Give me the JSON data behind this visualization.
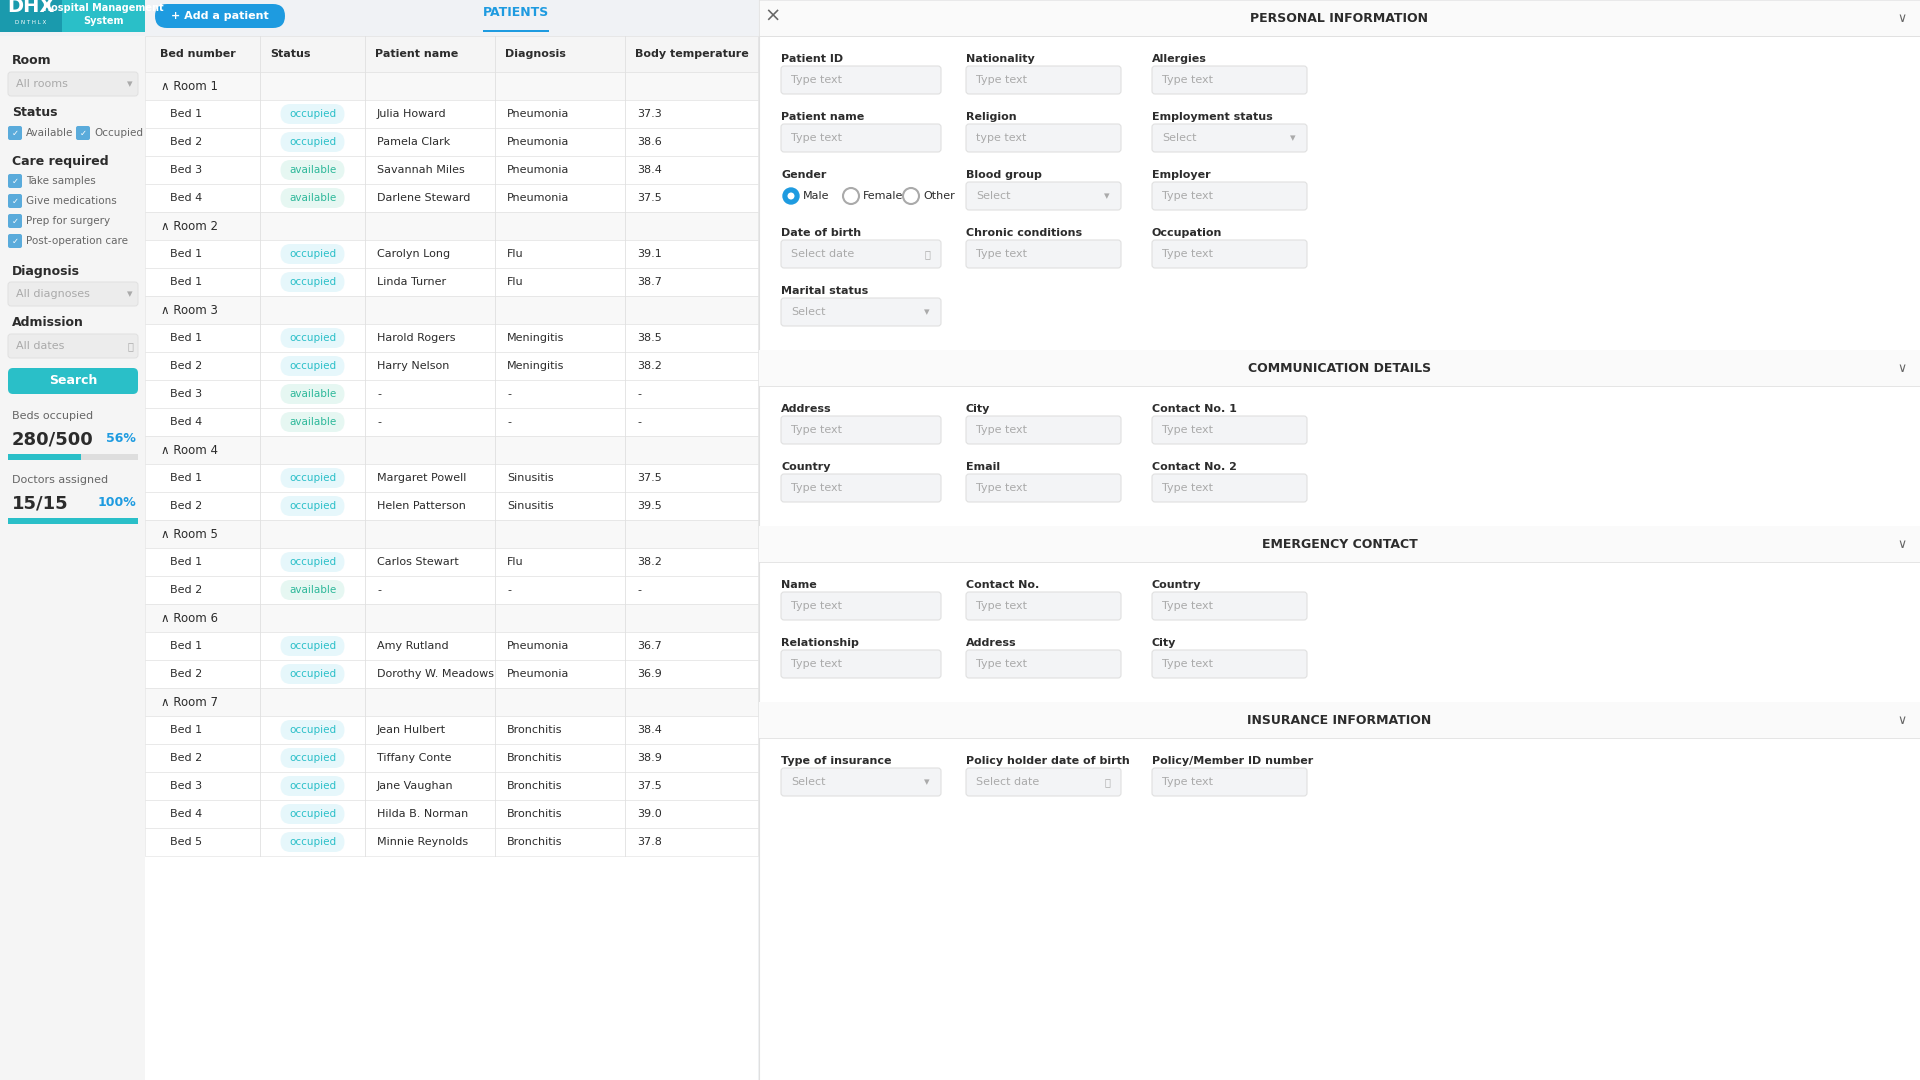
{
  "teal_color": "#2abfc8",
  "teal_dark": "#1a9aad",
  "blue_btn": "#1e9be0",
  "occupied_text": "#2abfc8",
  "available_text": "#2db89a",
  "bg_color": "#f0f2f5",
  "white": "#ffffff",
  "light_gray": "#f7f7f7",
  "sidebar_bg": "#f5f5f5",
  "border_gray": "#e0e0e0",
  "text_dark": "#2c2c2c",
  "text_medium": "#666666",
  "text_light": "#aaaaaa",
  "checkbox_blue": "#5aabdb",
  "section_bg": "#fafafa",
  "rooms": [
    {
      "name": "Room 1",
      "beds": [
        {
          "bed": "Bed 1",
          "status": "occupied",
          "name": "Julia Howard",
          "diagnosis": "Pneumonia",
          "temp": "37.3"
        },
        {
          "bed": "Bed 2",
          "status": "occupied",
          "name": "Pamela Clark",
          "diagnosis": "Pneumonia",
          "temp": "38.6"
        },
        {
          "bed": "Bed 3",
          "status": "available",
          "name": "Savannah Miles",
          "diagnosis": "Pneumonia",
          "temp": "38.4"
        },
        {
          "bed": "Bed 4",
          "status": "available",
          "name": "Darlene Steward",
          "diagnosis": "Pneumonia",
          "temp": "37.5"
        }
      ]
    },
    {
      "name": "Room 2",
      "beds": [
        {
          "bed": "Bed 1",
          "status": "occupied",
          "name": "Carolyn Long",
          "diagnosis": "Flu",
          "temp": "39.1"
        },
        {
          "bed": "Bed 1",
          "status": "occupied",
          "name": "Linda Turner",
          "diagnosis": "Flu",
          "temp": "38.7"
        }
      ]
    },
    {
      "name": "Room 3",
      "beds": [
        {
          "bed": "Bed 1",
          "status": "occupied",
          "name": "Harold Rogers",
          "diagnosis": "Meningitis",
          "temp": "38.5"
        },
        {
          "bed": "Bed 2",
          "status": "occupied",
          "name": "Harry Nelson",
          "diagnosis": "Meningitis",
          "temp": "38.2"
        },
        {
          "bed": "Bed 3",
          "status": "available",
          "name": "-",
          "diagnosis": "-",
          "temp": "-"
        },
        {
          "bed": "Bed 4",
          "status": "available",
          "name": "-",
          "diagnosis": "-",
          "temp": "-"
        }
      ]
    },
    {
      "name": "Room 4",
      "beds": [
        {
          "bed": "Bed 1",
          "status": "occupied",
          "name": "Margaret Powell",
          "diagnosis": "Sinusitis",
          "temp": "37.5"
        },
        {
          "bed": "Bed 2",
          "status": "occupied",
          "name": "Helen Patterson",
          "diagnosis": "Sinusitis",
          "temp": "39.5"
        }
      ]
    },
    {
      "name": "Room 5",
      "beds": [
        {
          "bed": "Bed 1",
          "status": "occupied",
          "name": "Carlos Stewart",
          "diagnosis": "Flu",
          "temp": "38.2"
        },
        {
          "bed": "Bed 2",
          "status": "available",
          "name": "-",
          "diagnosis": "-",
          "temp": "-"
        }
      ]
    },
    {
      "name": "Room 6",
      "beds": [
        {
          "bed": "Bed 1",
          "status": "occupied",
          "name": "Amy Rutland",
          "diagnosis": "Pneumonia",
          "temp": "36.7"
        },
        {
          "bed": "Bed 2",
          "status": "occupied",
          "name": "Dorothy W. Meadows",
          "diagnosis": "Pneumonia",
          "temp": "36.9"
        }
      ]
    },
    {
      "name": "Room 7",
      "beds": [
        {
          "bed": "Bed 1",
          "status": "occupied",
          "name": "Jean Hulbert",
          "diagnosis": "Bronchitis",
          "temp": "38.4"
        },
        {
          "bed": "Bed 2",
          "status": "occupied",
          "name": "Tiffany Conte",
          "diagnosis": "Bronchitis",
          "temp": "38.9"
        },
        {
          "bed": "Bed 3",
          "status": "occupied",
          "name": "Jane Vaughan",
          "diagnosis": "Bronchitis",
          "temp": "37.5"
        },
        {
          "bed": "Bed 4",
          "status": "occupied",
          "name": "Hilda B. Norman",
          "diagnosis": "Bronchitis",
          "temp": "39.0"
        },
        {
          "bed": "Bed 5",
          "status": "occupied",
          "name": "Minnie Reynolds",
          "diagnosis": "Bronchitis",
          "temp": "37.8"
        }
      ]
    }
  ]
}
